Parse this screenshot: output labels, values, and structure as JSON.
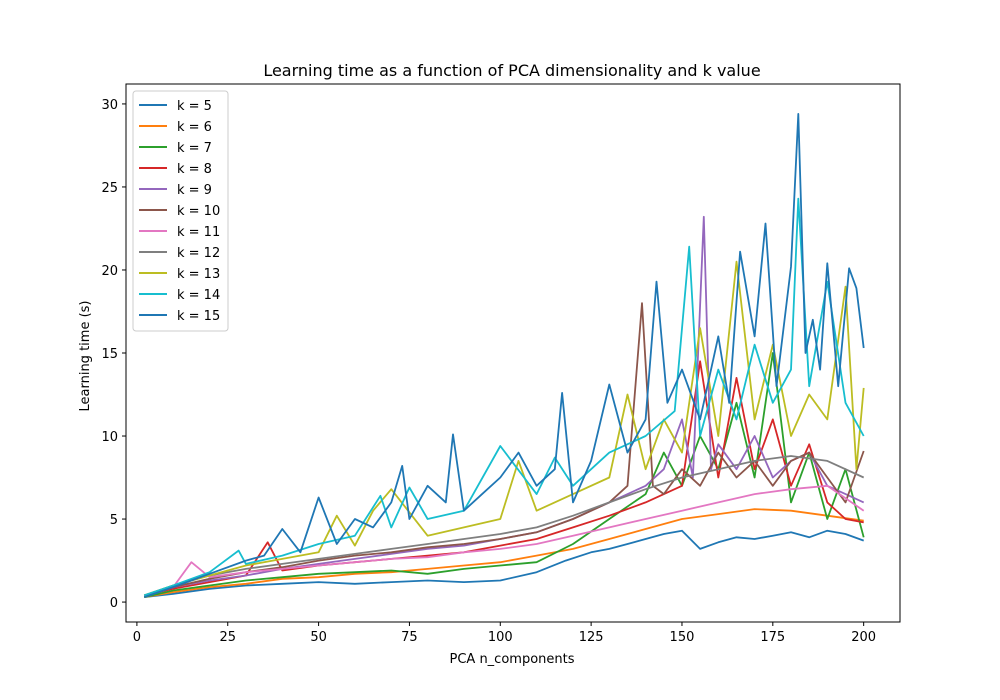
{
  "chart_data": {
    "type": "line",
    "title": "Learning time as a function of PCA dimensionality and k value",
    "xlabel": "PCA n_components",
    "ylabel": "Learning time (s)",
    "xlim": [
      -3,
      210
    ],
    "ylim": [
      -1.2,
      31.2
    ],
    "xticks": [
      0,
      25,
      50,
      75,
      100,
      125,
      150,
      175,
      200
    ],
    "yticks": [
      0,
      5,
      10,
      15,
      20,
      25,
      30
    ],
    "legend_position": "upper-left",
    "grid": false,
    "series": [
      {
        "name": "k = 5",
        "color": "#1f77b4",
        "x": [
          2,
          10,
          20,
          30,
          40,
          50,
          60,
          70,
          80,
          90,
          100,
          110,
          118,
          125,
          130,
          135,
          140,
          145,
          150,
          155,
          160,
          165,
          170,
          175,
          180,
          185,
          190,
          195,
          200
        ],
        "y": [
          0.3,
          0.5,
          0.8,
          1.0,
          1.1,
          1.2,
          1.1,
          1.2,
          1.3,
          1.2,
          1.3,
          1.8,
          2.5,
          3.0,
          3.2,
          3.5,
          3.8,
          4.1,
          4.3,
          3.2,
          3.6,
          3.9,
          3.8,
          4.0,
          4.2,
          3.9,
          4.3,
          4.1,
          3.7
        ]
      },
      {
        "name": "k = 6",
        "color": "#ff7f0e",
        "x": [
          2,
          10,
          20,
          30,
          40,
          50,
          60,
          70,
          80,
          90,
          100,
          110,
          120,
          130,
          140,
          150,
          160,
          170,
          180,
          190,
          200
        ],
        "y": [
          0.3,
          0.6,
          0.9,
          1.1,
          1.4,
          1.5,
          1.7,
          1.8,
          2.0,
          2.2,
          2.4,
          2.8,
          3.2,
          3.8,
          4.4,
          5.0,
          5.3,
          5.6,
          5.5,
          5.2,
          4.9
        ]
      },
      {
        "name": "k = 7",
        "color": "#2ca02c",
        "x": [
          2,
          10,
          20,
          30,
          40,
          50,
          60,
          70,
          80,
          90,
          100,
          110,
          120,
          130,
          140,
          145,
          150,
          155,
          160,
          165,
          170,
          175,
          180,
          185,
          190,
          195,
          200
        ],
        "y": [
          0.3,
          0.7,
          1.0,
          1.3,
          1.5,
          1.7,
          1.8,
          1.9,
          1.7,
          2.0,
          2.2,
          2.4,
          3.5,
          5.0,
          6.5,
          9.0,
          7.0,
          10.0,
          8.0,
          12.0,
          7.5,
          15.0,
          6.0,
          9.0,
          5.0,
          8.0,
          3.9
        ]
      },
      {
        "name": "k = 8",
        "color": "#d62728",
        "x": [
          2,
          10,
          20,
          30,
          36,
          40,
          50,
          60,
          70,
          80,
          90,
          100,
          110,
          120,
          130,
          140,
          150,
          155,
          160,
          165,
          170,
          175,
          180,
          185,
          190,
          195,
          200
        ],
        "y": [
          0.4,
          0.8,
          1.2,
          1.6,
          3.6,
          1.9,
          2.2,
          2.4,
          2.6,
          2.8,
          3.0,
          3.4,
          3.8,
          4.5,
          5.2,
          6.0,
          7.0,
          14.5,
          7.5,
          13.5,
          8.0,
          11.0,
          7.0,
          9.5,
          6.0,
          5.0,
          4.8
        ]
      },
      {
        "name": "k = 9",
        "color": "#9467bd",
        "x": [
          2,
          10,
          20,
          30,
          40,
          50,
          60,
          70,
          80,
          90,
          100,
          110,
          120,
          130,
          140,
          145,
          150,
          153,
          156,
          158,
          160,
          165,
          170,
          175,
          180,
          185,
          190,
          195,
          200
        ],
        "y": [
          0.4,
          0.9,
          1.3,
          1.6,
          2.0,
          2.3,
          2.6,
          2.9,
          3.2,
          3.4,
          3.8,
          4.2,
          5.0,
          6.0,
          7.0,
          8.0,
          11.0,
          7.5,
          23.2,
          8.0,
          9.5,
          8.0,
          10.0,
          7.5,
          8.5,
          9.0,
          7.0,
          6.5,
          6.0
        ]
      },
      {
        "name": "k = 10",
        "color": "#8c564b",
        "x": [
          2,
          10,
          20,
          30,
          40,
          50,
          60,
          70,
          80,
          90,
          100,
          110,
          120,
          130,
          135,
          139,
          142,
          145,
          150,
          155,
          160,
          165,
          170,
          175,
          180,
          185,
          190,
          195,
          200
        ],
        "y": [
          0.4,
          0.9,
          1.4,
          1.8,
          2.1,
          2.5,
          2.8,
          3.0,
          3.3,
          3.5,
          3.8,
          4.2,
          5.0,
          6.0,
          7.0,
          18.0,
          7.0,
          6.5,
          8.0,
          7.0,
          9.0,
          7.5,
          8.5,
          7.0,
          8.5,
          9.0,
          7.5,
          6.0,
          9.1
        ]
      },
      {
        "name": "k = 11",
        "color": "#e377c2",
        "x": [
          2,
          10,
          15,
          20,
          30,
          40,
          50,
          60,
          70,
          80,
          90,
          100,
          110,
          120,
          130,
          140,
          150,
          160,
          170,
          180,
          190,
          200
        ],
        "y": [
          0.4,
          0.9,
          2.4,
          1.5,
          1.8,
          2.0,
          2.2,
          2.4,
          2.6,
          2.7,
          3.0,
          3.2,
          3.5,
          4.0,
          4.5,
          5.0,
          5.5,
          6.0,
          6.5,
          6.8,
          7.0,
          5.5
        ]
      },
      {
        "name": "k = 12",
        "color": "#7f7f7f",
        "x": [
          2,
          10,
          20,
          30,
          40,
          50,
          60,
          70,
          80,
          90,
          100,
          110,
          120,
          130,
          140,
          150,
          160,
          170,
          180,
          190,
          200
        ],
        "y": [
          0.4,
          1.0,
          1.6,
          2.0,
          2.3,
          2.6,
          2.9,
          3.2,
          3.5,
          3.8,
          4.1,
          4.5,
          5.2,
          6.0,
          6.8,
          7.5,
          8.0,
          8.5,
          8.8,
          8.5,
          7.5
        ]
      },
      {
        "name": "k = 13",
        "color": "#bcbd22",
        "x": [
          2,
          10,
          20,
          30,
          40,
          50,
          55,
          60,
          65,
          70,
          80,
          90,
          100,
          105,
          110,
          120,
          130,
          135,
          140,
          145,
          150,
          155,
          160,
          165,
          170,
          175,
          180,
          185,
          190,
          195,
          198,
          200
        ],
        "y": [
          0.4,
          1.0,
          1.6,
          2.2,
          2.6,
          3.0,
          5.2,
          3.4,
          5.5,
          6.8,
          4.0,
          4.5,
          5.0,
          8.5,
          5.5,
          6.5,
          7.5,
          12.5,
          8.0,
          11.0,
          9.0,
          16.5,
          10.0,
          20.5,
          11.0,
          15.5,
          10.0,
          12.5,
          11.0,
          19.0,
          8.0,
          12.9
        ]
      },
      {
        "name": "k = 14",
        "color": "#17becf",
        "x": [
          2,
          10,
          20,
          28,
          30,
          40,
          50,
          60,
          67,
          70,
          75,
          80,
          90,
          100,
          110,
          115,
          120,
          125,
          130,
          140,
          148,
          152,
          155,
          160,
          165,
          170,
          175,
          180,
          182,
          185,
          190,
          195,
          200
        ],
        "y": [
          0.4,
          1.0,
          1.8,
          3.1,
          2.3,
          2.8,
          3.5,
          4.0,
          6.4,
          4.5,
          6.9,
          5.0,
          5.5,
          9.4,
          6.5,
          8.7,
          7.0,
          8.0,
          9.0,
          10.0,
          11.5,
          21.4,
          10.0,
          14.0,
          11.0,
          15.5,
          12.0,
          14.0,
          24.3,
          13.0,
          19.3,
          12.0,
          10.0
        ]
      },
      {
        "name": "k = 15",
        "color": "#1f77b4",
        "x": [
          2,
          10,
          20,
          30,
          35,
          40,
          45,
          50,
          55,
          60,
          65,
          70,
          73,
          75,
          80,
          85,
          87,
          90,
          95,
          100,
          105,
          110,
          115,
          117,
          120,
          125,
          130,
          135,
          140,
          143,
          146,
          150,
          155,
          160,
          163,
          166,
          170,
          173,
          176,
          180,
          182,
          184,
          186,
          188,
          190,
          193,
          196,
          198,
          200
        ],
        "y": [
          0.3,
          0.9,
          1.7,
          2.5,
          2.8,
          4.4,
          3.0,
          6.3,
          3.5,
          5.0,
          4.5,
          6.0,
          8.2,
          5.0,
          7.0,
          6.0,
          10.1,
          5.5,
          6.5,
          7.5,
          9.0,
          7.0,
          8.0,
          12.6,
          6.0,
          8.5,
          13.1,
          9.0,
          11.0,
          19.3,
          12.0,
          14.0,
          11.0,
          16.0,
          12.0,
          21.1,
          16.0,
          22.8,
          13.0,
          20.2,
          29.4,
          15.0,
          17.0,
          14.0,
          20.4,
          13.0,
          20.1,
          18.9,
          15.3
        ]
      }
    ]
  }
}
